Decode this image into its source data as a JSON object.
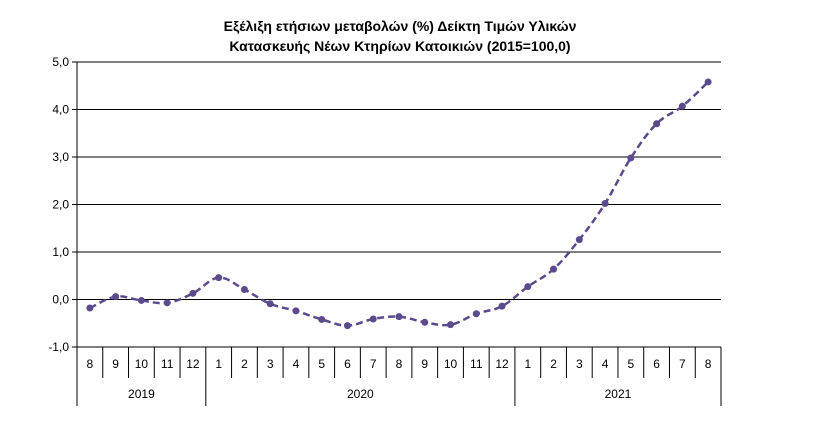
{
  "chart_data": {
    "type": "line",
    "title_lines": [
      "Εξέλιξη ετήσιων μεταβολών (%) Δείκτη Τιμών Υλικών",
      "Κατασκευής Νέων Κτηρίων Κατοικιών (2015=100,0)"
    ],
    "ylim": [
      -1.0,
      5.0
    ],
    "yticks": [
      "-1,0",
      "0,0",
      "1,0",
      "2,0",
      "3,0",
      "4,0",
      "5,0"
    ],
    "grid": true,
    "legend": "none",
    "categories": [
      "8",
      "9",
      "10",
      "11",
      "12",
      "1",
      "2",
      "3",
      "4",
      "5",
      "6",
      "7",
      "8",
      "9",
      "10",
      "11",
      "12",
      "1",
      "2",
      "3",
      "4",
      "5",
      "6",
      "7",
      "8"
    ],
    "year_groups": [
      {
        "label": "2019",
        "count": 5
      },
      {
        "label": "2020",
        "count": 12
      },
      {
        "label": "2021",
        "count": 8
      }
    ],
    "series": [
      {
        "color": "#5b4a8c",
        "values": [
          -0.18,
          0.06,
          -0.02,
          -0.07,
          0.13,
          0.46,
          0.21,
          -0.09,
          -0.24,
          -0.42,
          -0.55,
          -0.41,
          -0.36,
          -0.48,
          -0.53,
          -0.3,
          -0.14,
          0.27,
          0.64,
          1.26,
          2.02,
          2.98,
          3.7,
          4.07,
          4.58
        ]
      }
    ]
  }
}
